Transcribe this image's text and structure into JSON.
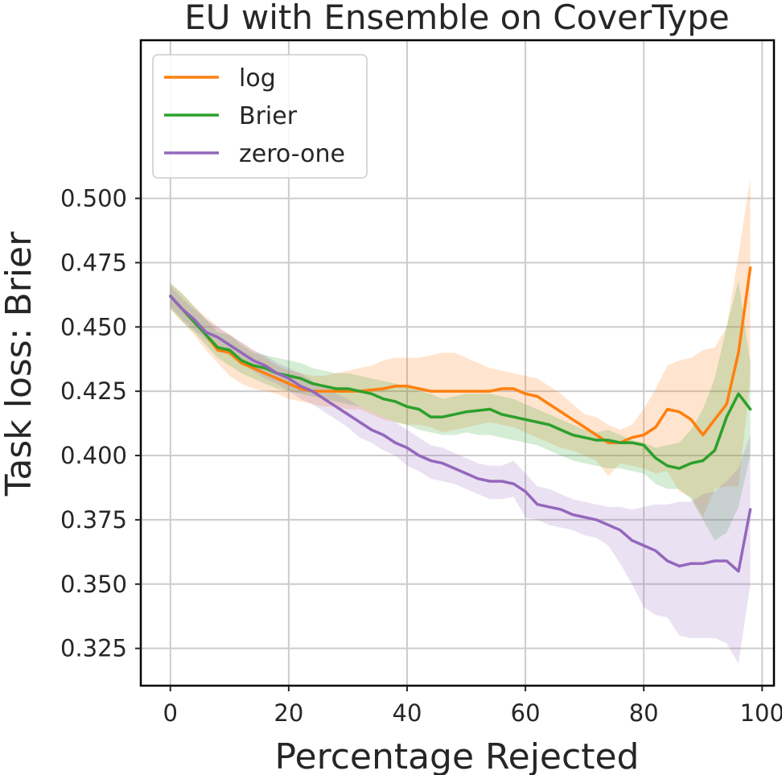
{
  "chart_data": {
    "type": "line",
    "title": "EU with Ensemble on CoverType",
    "xlabel": "Percentage Rejected",
    "ylabel": "Task loss: Brier",
    "xlim": [
      -5,
      102
    ],
    "ylim": [
      0.3105,
      0.5615
    ],
    "grid": true,
    "legend_position": "top-left",
    "x_ticks": [
      0,
      20,
      40,
      60,
      80,
      100
    ],
    "y_ticks": [
      0.325,
      0.35,
      0.375,
      0.4,
      0.425,
      0.45,
      0.475,
      0.5
    ],
    "x_tick_labels": [
      "0",
      "20",
      "40",
      "60",
      "80",
      "100"
    ],
    "y_tick_labels": [
      "0.325",
      "0.350",
      "0.375",
      "0.400",
      "0.425",
      "0.450",
      "0.475",
      "0.500"
    ],
    "x": [
      0,
      2,
      4,
      6,
      8,
      10,
      12,
      14,
      16,
      18,
      20,
      22,
      24,
      26,
      28,
      30,
      32,
      34,
      36,
      38,
      40,
      42,
      44,
      46,
      48,
      50,
      52,
      54,
      56,
      58,
      60,
      62,
      64,
      66,
      68,
      70,
      72,
      74,
      76,
      78,
      80,
      82,
      84,
      86,
      88,
      90,
      92,
      94,
      96,
      98
    ],
    "series": [
      {
        "name": "log",
        "color": "#ff7f0e",
        "values": [
          0.462,
          0.457,
          0.452,
          0.447,
          0.441,
          0.44,
          0.436,
          0.434,
          0.432,
          0.43,
          0.428,
          0.426,
          0.425,
          0.425,
          0.425,
          0.425,
          0.425,
          0.4255,
          0.426,
          0.427,
          0.427,
          0.426,
          0.425,
          0.425,
          0.425,
          0.425,
          0.425,
          0.425,
          0.426,
          0.426,
          0.424,
          0.423,
          0.42,
          0.417,
          0.414,
          0.411,
          0.408,
          0.405,
          0.405,
          0.407,
          0.408,
          0.411,
          0.418,
          0.417,
          0.414,
          0.408,
          0.414,
          0.42,
          0.44,
          0.473
        ],
        "lower": [
          0.457,
          0.452,
          0.447,
          0.441,
          0.436,
          0.431,
          0.428,
          0.426,
          0.425,
          0.424,
          0.422,
          0.421,
          0.42,
          0.419,
          0.419,
          0.418,
          0.418,
          0.416,
          0.414,
          0.413,
          0.412,
          0.412,
          0.411,
          0.409,
          0.41,
          0.411,
          0.412,
          0.413,
          0.412,
          0.411,
          0.409,
          0.407,
          0.405,
          0.403,
          0.402,
          0.4,
          0.398,
          0.392,
          0.397,
          0.396,
          0.395,
          0.393,
          0.394,
          0.386,
          0.384,
          0.376,
          0.387,
          0.388,
          0.388,
          0.43
        ],
        "upper": [
          0.467,
          0.463,
          0.458,
          0.454,
          0.45,
          0.447,
          0.444,
          0.441,
          0.438,
          0.435,
          0.433,
          0.432,
          0.431,
          0.431,
          0.432,
          0.433,
          0.434,
          0.435,
          0.437,
          0.438,
          0.438,
          0.438,
          0.439,
          0.44,
          0.44,
          0.438,
          0.436,
          0.434,
          0.433,
          0.432,
          0.431,
          0.43,
          0.427,
          0.424,
          0.42,
          0.416,
          0.415,
          0.412,
          0.41,
          0.412,
          0.418,
          0.426,
          0.435,
          0.437,
          0.438,
          0.441,
          0.442,
          0.45,
          0.478,
          0.508
        ]
      },
      {
        "name": "Brier",
        "color": "#2ca02c",
        "values": [
          0.462,
          0.457,
          0.452,
          0.447,
          0.442,
          0.441,
          0.437,
          0.435,
          0.434,
          0.432,
          0.431,
          0.43,
          0.428,
          0.427,
          0.426,
          0.426,
          0.425,
          0.424,
          0.422,
          0.421,
          0.419,
          0.418,
          0.415,
          0.415,
          0.416,
          0.417,
          0.4175,
          0.418,
          0.416,
          0.415,
          0.414,
          0.413,
          0.412,
          0.41,
          0.408,
          0.407,
          0.406,
          0.406,
          0.405,
          0.405,
          0.404,
          0.399,
          0.396,
          0.395,
          0.397,
          0.398,
          0.402,
          0.415,
          0.424,
          0.418
        ],
        "lower": [
          0.457,
          0.452,
          0.448,
          0.443,
          0.438,
          0.435,
          0.432,
          0.43,
          0.428,
          0.426,
          0.425,
          0.424,
          0.423,
          0.422,
          0.421,
          0.42,
          0.419,
          0.417,
          0.415,
          0.413,
          0.412,
          0.41,
          0.409,
          0.408,
          0.408,
          0.409,
          0.408,
          0.408,
          0.407,
          0.406,
          0.405,
          0.404,
          0.402,
          0.4,
          0.398,
          0.397,
          0.396,
          0.395,
          0.395,
          0.394,
          0.393,
          0.389,
          0.387,
          0.387,
          0.383,
          0.375,
          0.367,
          0.37,
          0.38,
          0.4
        ],
        "upper": [
          0.467,
          0.463,
          0.458,
          0.453,
          0.448,
          0.447,
          0.443,
          0.44,
          0.439,
          0.438,
          0.437,
          0.436,
          0.434,
          0.433,
          0.432,
          0.432,
          0.431,
          0.43,
          0.429,
          0.428,
          0.427,
          0.425,
          0.424,
          0.422,
          0.423,
          0.424,
          0.424,
          0.424,
          0.423,
          0.422,
          0.42,
          0.418,
          0.416,
          0.414,
          0.412,
          0.41,
          0.409,
          0.41,
          0.408,
          0.406,
          0.405,
          0.403,
          0.404,
          0.405,
          0.41,
          0.418,
          0.43,
          0.45,
          0.468,
          0.436
        ]
      },
      {
        "name": "zero-one",
        "color": "#9467bd",
        "values": [
          0.462,
          0.457,
          0.453,
          0.448,
          0.446,
          0.443,
          0.44,
          0.437,
          0.435,
          0.432,
          0.43,
          0.427,
          0.425,
          0.422,
          0.419,
          0.416,
          0.413,
          0.41,
          0.408,
          0.405,
          0.403,
          0.4,
          0.398,
          0.397,
          0.395,
          0.393,
          0.391,
          0.39,
          0.39,
          0.389,
          0.386,
          0.381,
          0.38,
          0.379,
          0.377,
          0.376,
          0.375,
          0.373,
          0.371,
          0.367,
          0.365,
          0.363,
          0.359,
          0.357,
          0.358,
          0.358,
          0.359,
          0.359,
          0.355,
          0.379
        ],
        "lower": [
          0.458,
          0.453,
          0.449,
          0.445,
          0.442,
          0.439,
          0.436,
          0.433,
          0.43,
          0.428,
          0.425,
          0.422,
          0.42,
          0.417,
          0.414,
          0.411,
          0.407,
          0.405,
          0.402,
          0.4,
          0.396,
          0.394,
          0.391,
          0.39,
          0.389,
          0.387,
          0.385,
          0.383,
          0.383,
          0.384,
          0.376,
          0.375,
          0.373,
          0.372,
          0.371,
          0.369,
          0.368,
          0.365,
          0.358,
          0.35,
          0.341,
          0.338,
          0.337,
          0.33,
          0.329,
          0.329,
          0.329,
          0.327,
          0.319,
          0.35
        ],
        "upper": [
          0.466,
          0.461,
          0.457,
          0.453,
          0.45,
          0.447,
          0.444,
          0.441,
          0.439,
          0.436,
          0.434,
          0.432,
          0.429,
          0.427,
          0.424,
          0.422,
          0.419,
          0.417,
          0.415,
          0.413,
          0.41,
          0.407,
          0.404,
          0.403,
          0.401,
          0.399,
          0.397,
          0.396,
          0.396,
          0.398,
          0.393,
          0.388,
          0.387,
          0.385,
          0.383,
          0.382,
          0.381,
          0.38,
          0.38,
          0.379,
          0.38,
          0.381,
          0.381,
          0.382,
          0.382,
          0.385,
          0.386,
          0.39,
          0.395,
          0.408
        ]
      }
    ]
  }
}
